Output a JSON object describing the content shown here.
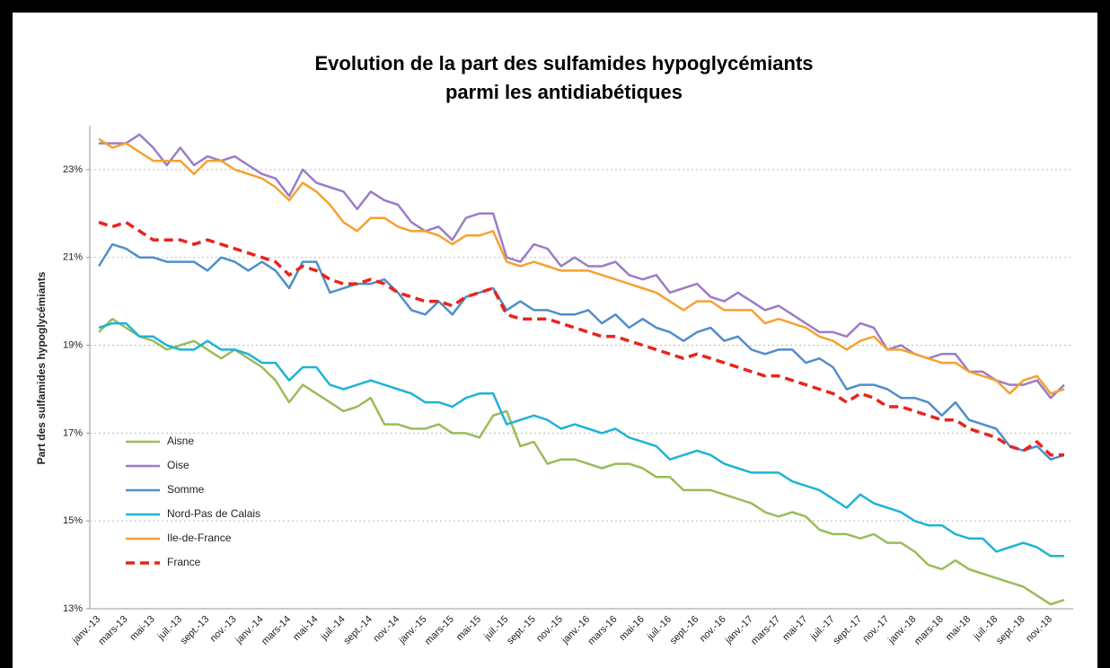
{
  "chart_data": {
    "type": "line",
    "title": [
      "Evolution de la part des sulfamides hypoglycémiants",
      "parmi les antidiabétiques"
    ],
    "y_label": "Part des sulfamides hypoglycémiants",
    "categories": [
      "janv.-13",
      null,
      "mars-13",
      null,
      "mai-13",
      null,
      "juil.-13",
      null,
      "sept.-13",
      null,
      "nov.-13",
      null,
      "janv.-14",
      null,
      "mars-14",
      null,
      "mai-14",
      null,
      "juil.-14",
      null,
      "sept.-14",
      null,
      "nov.-14",
      null,
      "janv.-15",
      null,
      "mars-15",
      null,
      "mai-15",
      null,
      "juil.-15",
      null,
      "sept.-15",
      null,
      "nov.-15",
      null,
      "janv.-16",
      null,
      "mars-16",
      null,
      "mai-16",
      null,
      "juil.-16",
      null,
      "sept.-16",
      null,
      "nov.-16",
      null,
      "janv.-17",
      null,
      "mars-17",
      null,
      "mai-17",
      null,
      "juil.-17",
      null,
      "sept.-17",
      null,
      "nov.-17",
      null,
      "janv.-18",
      null,
      "mars-18",
      null,
      "mai-18",
      null,
      "juil.-18",
      null,
      "sept.-18",
      null,
      "nov.-18",
      null
    ],
    "ylim": [
      13,
      24
    ],
    "yticks": [
      {
        "value": 13,
        "label": "13%"
      },
      {
        "value": 15,
        "label": "15%"
      },
      {
        "value": 17,
        "label": "17%"
      },
      {
        "value": 19,
        "label": "19%"
      },
      {
        "value": 21,
        "label": "21%"
      },
      {
        "value": 23,
        "label": "23%"
      }
    ],
    "grid": true,
    "legend": "lower left",
    "series": [
      {
        "name": "Aisne",
        "color": "#9bbb59",
        "dashed": false,
        "values": [
          19.3,
          19.6,
          19.4,
          19.2,
          19.1,
          18.9,
          19.0,
          19.1,
          18.9,
          18.7,
          18.9,
          18.7,
          18.5,
          18.2,
          17.7,
          18.1,
          17.9,
          17.7,
          17.5,
          17.6,
          17.8,
          17.2,
          17.2,
          17.1,
          17.1,
          17.2,
          17.0,
          17.0,
          16.9,
          17.4,
          17.5,
          16.7,
          16.8,
          16.3,
          16.4,
          16.4,
          16.3,
          16.2,
          16.3,
          16.3,
          16.2,
          16.0,
          16.0,
          15.7,
          15.7,
          15.7,
          15.6,
          15.5,
          15.4,
          15.2,
          15.1,
          15.2,
          15.1,
          14.8,
          14.7,
          14.7,
          14.6,
          14.7,
          14.5,
          14.5,
          14.3,
          14.0,
          13.9,
          14.1,
          13.9,
          13.8,
          13.7,
          13.6,
          13.5,
          13.3,
          13.1,
          13.2
        ]
      },
      {
        "name": "Oise",
        "color": "#9b7cc6",
        "dashed": false,
        "values": [
          23.6,
          23.6,
          23.6,
          23.8,
          23.5,
          23.1,
          23.5,
          23.1,
          23.3,
          23.2,
          23.3,
          23.1,
          22.9,
          22.8,
          22.4,
          23.0,
          22.7,
          22.6,
          22.5,
          22.1,
          22.5,
          22.3,
          22.2,
          21.8,
          21.6,
          21.7,
          21.4,
          21.9,
          22.0,
          22.0,
          21.0,
          20.9,
          21.3,
          21.2,
          20.8,
          21.0,
          20.8,
          20.8,
          20.9,
          20.6,
          20.5,
          20.6,
          20.2,
          20.3,
          20.4,
          20.1,
          20.0,
          20.2,
          20.0,
          19.8,
          19.9,
          19.7,
          19.5,
          19.3,
          19.3,
          19.2,
          19.5,
          19.4,
          18.9,
          19.0,
          18.8,
          18.7,
          18.8,
          18.8,
          18.4,
          18.4,
          18.2,
          18.1,
          18.1,
          18.2,
          17.8,
          18.1
        ]
      },
      {
        "name": "Somme",
        "color": "#4f8ecb",
        "dashed": false,
        "values": [
          20.8,
          21.3,
          21.2,
          21.0,
          21.0,
          20.9,
          20.9,
          20.9,
          20.7,
          21.0,
          20.9,
          20.7,
          20.9,
          20.7,
          20.3,
          20.9,
          20.9,
          20.2,
          20.3,
          20.4,
          20.4,
          20.5,
          20.2,
          19.8,
          19.7,
          20.0,
          19.7,
          20.1,
          20.2,
          20.3,
          19.8,
          20.0,
          19.8,
          19.8,
          19.7,
          19.7,
          19.8,
          19.5,
          19.7,
          19.4,
          19.6,
          19.4,
          19.3,
          19.1,
          19.3,
          19.4,
          19.1,
          19.2,
          18.9,
          18.8,
          18.9,
          18.9,
          18.6,
          18.7,
          18.5,
          18.0,
          18.1,
          18.1,
          18.0,
          17.8,
          17.8,
          17.7,
          17.4,
          17.7,
          17.3,
          17.2,
          17.1,
          16.7,
          16.6,
          16.7,
          16.4,
          16.5
        ]
      },
      {
        "name": "Nord-Pas de Calais",
        "color": "#1db4d6",
        "dashed": false,
        "values": [
          19.4,
          19.5,
          19.5,
          19.2,
          19.2,
          19.0,
          18.9,
          18.9,
          19.1,
          18.9,
          18.9,
          18.8,
          18.6,
          18.6,
          18.2,
          18.5,
          18.5,
          18.1,
          18.0,
          18.1,
          18.2,
          18.1,
          18.0,
          17.9,
          17.7,
          17.7,
          17.6,
          17.8,
          17.9,
          17.9,
          17.2,
          17.3,
          17.4,
          17.3,
          17.1,
          17.2,
          17.1,
          17.0,
          17.1,
          16.9,
          16.8,
          16.7,
          16.4,
          16.5,
          16.6,
          16.5,
          16.3,
          16.2,
          16.1,
          16.1,
          16.1,
          15.9,
          15.8,
          15.7,
          15.5,
          15.3,
          15.6,
          15.4,
          15.3,
          15.2,
          15.0,
          14.9,
          14.9,
          14.7,
          14.6,
          14.6,
          14.3,
          14.4,
          14.5,
          14.4,
          14.2,
          14.2
        ]
      },
      {
        "name": "Ile-de-France",
        "color": "#f6a12f",
        "dashed": false,
        "values": [
          23.7,
          23.5,
          23.6,
          23.4,
          23.2,
          23.2,
          23.2,
          22.9,
          23.2,
          23.2,
          23.0,
          22.9,
          22.8,
          22.6,
          22.3,
          22.7,
          22.5,
          22.2,
          21.8,
          21.6,
          21.9,
          21.9,
          21.7,
          21.6,
          21.6,
          21.5,
          21.3,
          21.5,
          21.5,
          21.6,
          20.9,
          20.8,
          20.9,
          20.8,
          20.7,
          20.7,
          20.7,
          20.6,
          20.5,
          20.4,
          20.3,
          20.2,
          20.0,
          19.8,
          20.0,
          20.0,
          19.8,
          19.8,
          19.8,
          19.5,
          19.6,
          19.5,
          19.4,
          19.2,
          19.1,
          18.9,
          19.1,
          19.2,
          18.9,
          18.9,
          18.8,
          18.7,
          18.6,
          18.6,
          18.4,
          18.3,
          18.2,
          17.9,
          18.2,
          18.3,
          17.9,
          18.0
        ]
      },
      {
        "name": "France",
        "color": "#e8251c",
        "dashed": true,
        "values": [
          21.8,
          21.7,
          21.8,
          21.6,
          21.4,
          21.4,
          21.4,
          21.3,
          21.4,
          21.3,
          21.2,
          21.1,
          21.0,
          20.9,
          20.6,
          20.8,
          20.7,
          20.5,
          20.4,
          20.4,
          20.5,
          20.4,
          20.2,
          20.1,
          20.0,
          20.0,
          19.9,
          20.1,
          20.2,
          20.3,
          19.7,
          19.6,
          19.6,
          19.6,
          19.5,
          19.4,
          19.3,
          19.2,
          19.2,
          19.1,
          19.0,
          18.9,
          18.8,
          18.7,
          18.8,
          18.7,
          18.6,
          18.5,
          18.4,
          18.3,
          18.3,
          18.2,
          18.1,
          18.0,
          17.9,
          17.7,
          17.9,
          17.8,
          17.6,
          17.6,
          17.5,
          17.4,
          17.3,
          17.3,
          17.1,
          17.0,
          16.9,
          16.7,
          16.6,
          16.8,
          16.5,
          16.5
        ]
      }
    ]
  }
}
